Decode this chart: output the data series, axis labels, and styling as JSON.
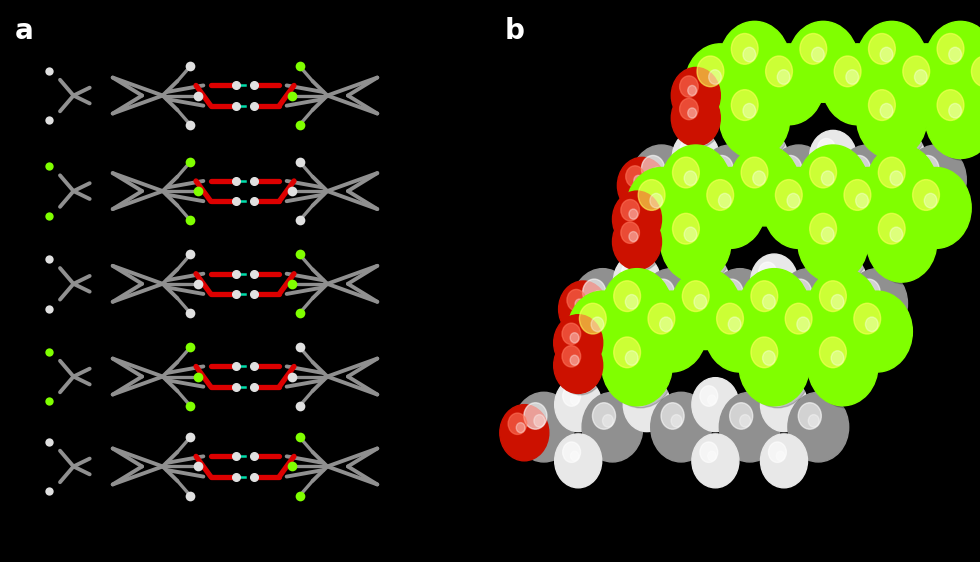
{
  "background_color": "#000000",
  "label_a": "a",
  "label_b": "b",
  "label_color": "#ffffff",
  "label_fontsize": 20,
  "label_fontweight": "bold",
  "panel_a": {
    "gray_color": "#909090",
    "green_color": "#80FF00",
    "white_color": "#e0e0e0",
    "red_color": "#dd0000",
    "teal_color": "#00ddaa",
    "bond_lw": 2.8
  },
  "panel_b": {
    "gray_color": "#909090",
    "green_color": "#80FF00",
    "white_color": "#e8e8e8",
    "red_color": "#cc1100"
  }
}
